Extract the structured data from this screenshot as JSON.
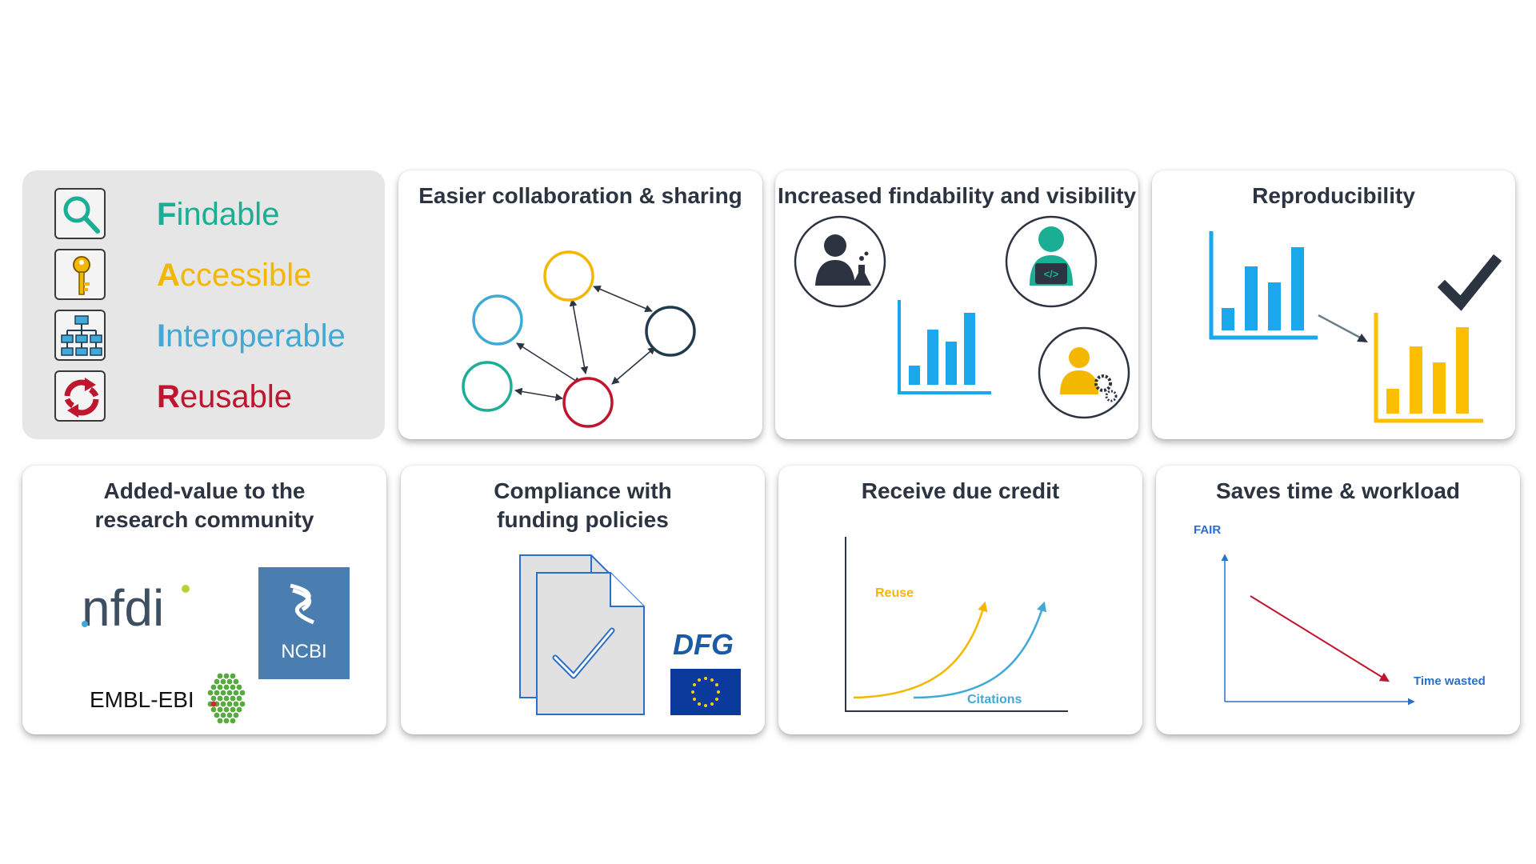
{
  "fair": {
    "items": [
      {
        "initial": "F",
        "rest": "indable",
        "color": "#1aae94",
        "icon": "magnifier-icon"
      },
      {
        "initial": "A",
        "rest": "ccessible",
        "color": "#f3b700",
        "icon": "key-icon"
      },
      {
        "initial": "I",
        "rest": "nteroperable",
        "color": "#41a9d6",
        "icon": "org-chart-icon"
      },
      {
        "initial": "R",
        "rest": "eusable",
        "color": "#c0152e",
        "icon": "recycle-arrows-icon"
      }
    ]
  },
  "cards": {
    "collaboration": {
      "title": "Easier collaboration & sharing"
    },
    "findability": {
      "title": "Increased findability and visibility"
    },
    "reproducibility": {
      "title": "Reproducibility"
    },
    "added_value": {
      "title_line1": "Added-value to the",
      "title_line2": "research community",
      "logo_nfdi": "nfdi",
      "logo_ncbi": "NCBI",
      "logo_embl": "EMBL-EBI"
    },
    "compliance": {
      "title_line1": "Compliance with",
      "title_line2": "funding policies",
      "logo_dfg": "DFG"
    },
    "credit": {
      "title": "Receive due credit",
      "label_reuse": "Reuse",
      "label_citations": "Citations"
    },
    "saves_time": {
      "title": "Saves time & workload",
      "label_y": "FAIR",
      "label_x": "Time wasted"
    }
  },
  "colors": {
    "teal": "#1aae94",
    "yellow": "#f3b700",
    "blue": "#41a9d6",
    "red": "#c0152e",
    "dark": "#2b3440",
    "chart_blue": "#1aa7ec",
    "chart_yellow": "#fbbf00",
    "axis_blue": "#2a6fc9"
  }
}
